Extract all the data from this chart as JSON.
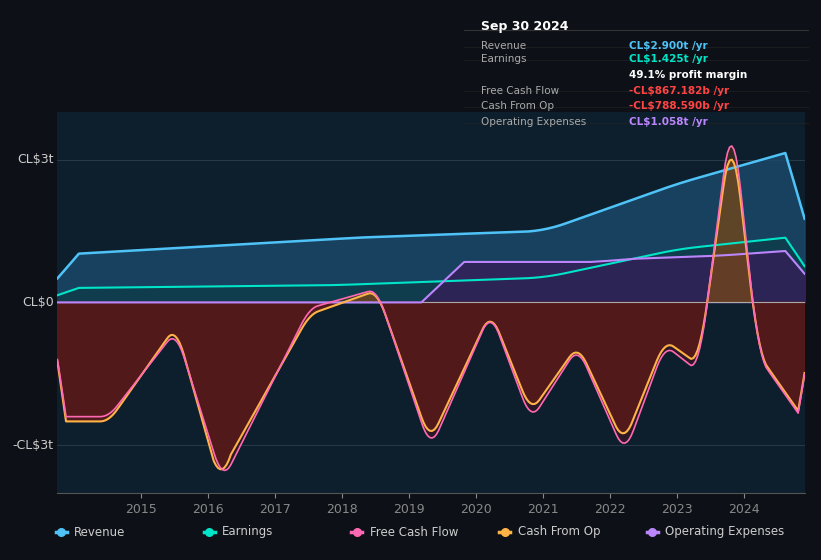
{
  "bg_color": "#0d1117",
  "plot_bg_color": "#0d1f2d",
  "title": "Sep 30 2024",
  "ylabel_top": "CL$3t",
  "ylabel_zero": "CL$0",
  "ylabel_bottom": "-CL$3t",
  "ylim": [
    -4,
    4
  ],
  "colors": {
    "revenue": "#4fc3f7",
    "earnings": "#00e5c8",
    "free_cash_flow": "#ff69b4",
    "cash_from_op": "#ffb347",
    "operating_expenses": "#bb86fc"
  },
  "legend": [
    {
      "label": "Revenue",
      "color": "#4fc3f7"
    },
    {
      "label": "Earnings",
      "color": "#00e5c8"
    },
    {
      "label": "Free Cash Flow",
      "color": "#ff69b4"
    },
    {
      "label": "Cash From Op",
      "color": "#ffb347"
    },
    {
      "label": "Operating Expenses",
      "color": "#bb86fc"
    }
  ],
  "info_box": {
    "title": "Sep 30 2024",
    "rows": [
      {
        "label": "Revenue",
        "value": "CL$2.900t /yr",
        "color": "#4fc3f7"
      },
      {
        "label": "Earnings",
        "value": "CL$1.425t /yr",
        "color": "#00e5c8"
      },
      {
        "label": "",
        "value": "49.1% profit margin",
        "color": "#ffffff"
      },
      {
        "label": "Free Cash Flow",
        "value": "-CL$867.182b /yr",
        "color": "#ff4444"
      },
      {
        "label": "Cash From Op",
        "value": "-CL$788.590b /yr",
        "color": "#ff4444"
      },
      {
        "label": "Operating Expenses",
        "value": "CL$1.058t /yr",
        "color": "#bb86fc"
      }
    ]
  }
}
